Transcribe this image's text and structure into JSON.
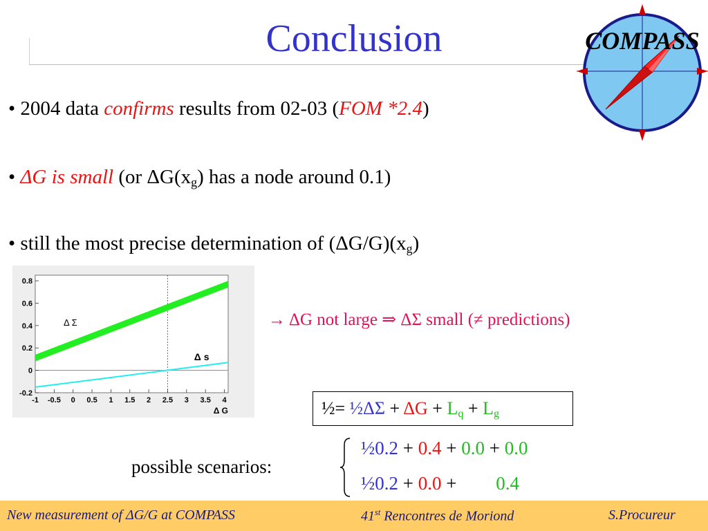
{
  "slide": {
    "title": "Conclusion"
  },
  "logo": {
    "text": "COMPASS"
  },
  "bullets": [
    {
      "bullet": "•",
      "pre": "2004 data ",
      "emph": "confirms",
      "mid": " results from 02-03 (",
      "emph2": "FOM *2.4",
      "post": ")"
    },
    {
      "bullet": "•",
      "emph": "ΔG is small",
      "pre": " (or ΔG(x",
      "sub": "g",
      "post": ") has a node around 0.1)"
    },
    {
      "bullet": "•",
      "pre": "still the most precise determination of (ΔG/G)(x",
      "sub": "g",
      "post": ")"
    }
  ],
  "arrow_text": "→ ΔG not large ⇒ ΔΣ small (≠ predictions)",
  "equation": {
    "lhs": "½= ",
    "t1": "½ΔΣ",
    "p1": " + ",
    "t2": "ΔG",
    "p2": " + ",
    "t3": "L",
    "t3sub": "q",
    "p3": " + ",
    "t4": "L",
    "t4sub": "g"
  },
  "scenarios": {
    "label": "possible scenarios:",
    "rows": [
      {
        "a": "½0.2",
        "p1": " + ",
        "b": "0.4",
        "p2": " + ",
        "c": "0.0",
        "p3": " + ",
        "d": "0.0"
      },
      {
        "a": "½0.2",
        "p1": " + ",
        "b": "0.0",
        "p2": " + ",
        "c": "",
        "p3": "",
        "d": "0.4"
      }
    ]
  },
  "footer": {
    "left": "New measurement of ΔG/G at COMPASS",
    "center_num": "41",
    "center_sup": "st",
    "center_rest": " Rencontres de Moriond",
    "right": "S.Procureur"
  },
  "colors": {
    "title": "#3333cc",
    "red": "#ee1111",
    "blue": "#3333cc",
    "green": "#22bb22",
    "arrow_text": "#e0105a",
    "footer_bg": "#ffcc66"
  },
  "chart_data": {
    "type": "line",
    "xlabel": "Δ G",
    "ylabel": "",
    "xlim": [
      -1,
      4.1
    ],
    "ylim": [
      -0.2,
      0.85
    ],
    "x_ticks": [
      -1,
      -0.5,
      0,
      0.5,
      1,
      1.5,
      2,
      2.5,
      3,
      3.5,
      4
    ],
    "x_tick_labels": [
      "-1",
      "-0.5",
      "0",
      "0.5",
      "1",
      "1.5",
      "2",
      "2.5",
      "3",
      "3.5",
      "4"
    ],
    "y_ticks": [
      -0.2,
      0,
      0.2,
      0.4,
      0.6,
      0.8
    ],
    "y_tick_labels": [
      "-0.2",
      "0",
      "0.2",
      "0.4",
      "0.6",
      "0.8"
    ],
    "reference_x": 2.5,
    "reference_y": 0,
    "series": [
      {
        "name": "Δ Σ",
        "x": [
          -1,
          4.1
        ],
        "y_low": [
          0.08,
          0.74
        ],
        "y_high": [
          0.14,
          0.8
        ],
        "color": "#22ee22"
      },
      {
        "name": "Δ s",
        "x": [
          -1,
          4.1
        ],
        "y": [
          -0.15,
          0.07
        ],
        "color": "#22eeee"
      }
    ],
    "grid": false
  }
}
